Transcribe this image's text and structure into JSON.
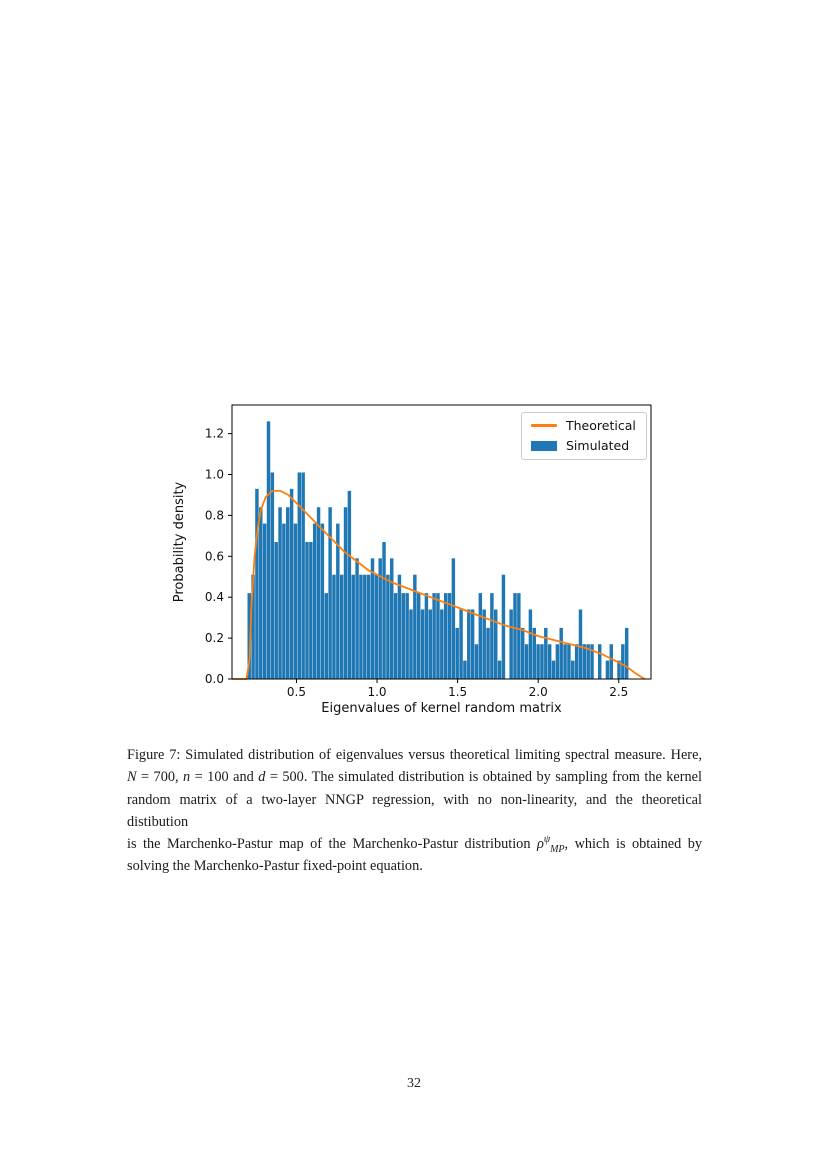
{
  "page": {
    "number": "32"
  },
  "chart_data": {
    "type": "bar",
    "subtype": "histogram-with-theoretical-curve",
    "title": "",
    "xlabel": "Eigenvalues of kernel random matrix",
    "ylabel": "Probability density",
    "xlim": [
      0.1,
      2.7
    ],
    "ylim": [
      0,
      1.34
    ],
    "xticks": [
      0.5,
      1.0,
      1.5,
      2.0,
      2.5
    ],
    "yticks": [
      0.0,
      0.2,
      0.4,
      0.6,
      0.8,
      1.0,
      1.2
    ],
    "grid": false,
    "legend_position": "upper right",
    "legend": [
      {
        "label": "Theoretical",
        "type": "line",
        "color": "#ff7f0e"
      },
      {
        "label": "Simulated",
        "type": "patch",
        "color": "#1f77b4"
      }
    ],
    "histogram": {
      "color": "#1f77b4",
      "bin_start": 0.195,
      "bin_width": 0.0239,
      "heights": [
        0.42,
        0.51,
        0.93,
        0.84,
        0.76,
        1.26,
        1.01,
        0.67,
        0.84,
        0.76,
        0.84,
        0.93,
        0.76,
        1.01,
        1.01,
        0.67,
        0.67,
        0.76,
        0.84,
        0.76,
        0.42,
        0.84,
        0.51,
        0.76,
        0.51,
        0.84,
        0.92,
        0.51,
        0.59,
        0.51,
        0.51,
        0.51,
        0.59,
        0.51,
        0.59,
        0.67,
        0.51,
        0.59,
        0.42,
        0.51,
        0.42,
        0.42,
        0.34,
        0.51,
        0.42,
        0.34,
        0.42,
        0.34,
        0.42,
        0.42,
        0.34,
        0.42,
        0.42,
        0.59,
        0.25,
        0.34,
        0.09,
        0.34,
        0.34,
        0.17,
        0.42,
        0.34,
        0.25,
        0.42,
        0.34,
        0.09,
        0.51,
        0.0,
        0.34,
        0.42,
        0.42,
        0.25,
        0.17,
        0.34,
        0.25,
        0.17,
        0.17,
        0.25,
        0.17,
        0.09,
        0.17,
        0.25,
        0.17,
        0.17,
        0.09,
        0.17,
        0.34,
        0.17,
        0.17,
        0.17,
        0.0,
        0.17,
        0.0,
        0.09,
        0.17,
        0.0,
        0.09,
        0.17,
        0.25,
        0.0
      ]
    },
    "theoretical_curve": {
      "color": "#ff7f0e",
      "points": [
        [
          0.1,
          0.0
        ],
        [
          0.19,
          0.0
        ],
        [
          0.21,
          0.1
        ],
        [
          0.22,
          0.35
        ],
        [
          0.24,
          0.6
        ],
        [
          0.26,
          0.74
        ],
        [
          0.28,
          0.83
        ],
        [
          0.31,
          0.89
        ],
        [
          0.35,
          0.92
        ],
        [
          0.4,
          0.92
        ],
        [
          0.45,
          0.9
        ],
        [
          0.5,
          0.86
        ],
        [
          0.55,
          0.82
        ],
        [
          0.6,
          0.78
        ],
        [
          0.65,
          0.74
        ],
        [
          0.7,
          0.7
        ],
        [
          0.75,
          0.66
        ],
        [
          0.8,
          0.62
        ],
        [
          0.85,
          0.59
        ],
        [
          0.9,
          0.56
        ],
        [
          0.95,
          0.53
        ],
        [
          1.0,
          0.51
        ],
        [
          1.1,
          0.47
        ],
        [
          1.2,
          0.44
        ],
        [
          1.3,
          0.41
        ],
        [
          1.4,
          0.38
        ],
        [
          1.5,
          0.35
        ],
        [
          1.6,
          0.32
        ],
        [
          1.7,
          0.29
        ],
        [
          1.8,
          0.26
        ],
        [
          1.9,
          0.24
        ],
        [
          2.0,
          0.21
        ],
        [
          2.1,
          0.19
        ],
        [
          2.2,
          0.17
        ],
        [
          2.3,
          0.15
        ],
        [
          2.4,
          0.12
        ],
        [
          2.5,
          0.08
        ],
        [
          2.55,
          0.06
        ],
        [
          2.6,
          0.03
        ],
        [
          2.64,
          0.01
        ],
        [
          2.66,
          0.0
        ]
      ]
    }
  },
  "caption": {
    "lines": [
      {
        "last": false,
        "segments": [
          {
            "t": "Figure 7: Simulated distribution of eigenvalues versus theoretical limiting spectral measure. Here,",
            "s": ""
          }
        ]
      },
      {
        "last": false,
        "segments": [
          {
            "t": "N",
            "s": "i"
          },
          {
            "t": " = 700, ",
            "s": ""
          },
          {
            "t": "n",
            "s": "i"
          },
          {
            "t": " = 100 and ",
            "s": ""
          },
          {
            "t": "d",
            "s": "i"
          },
          {
            "t": " = 500. The simulated distribution is obtained by sampling from the kernel",
            "s": ""
          }
        ]
      },
      {
        "last": false,
        "segments": [
          {
            "t": "random matrix of a two-layer NNGP regression, with no non-linearity, and the theoretical distibution",
            "s": ""
          }
        ]
      },
      {
        "last": false,
        "segments": [
          {
            "t": "is the Marchenko-Pastur map of the Marchenko-Pastur distribution ",
            "s": ""
          },
          {
            "t": "ρ",
            "s": "i"
          },
          {
            "t": "ψ",
            "s": "sup"
          },
          {
            "t": "MP",
            "s": "sub"
          },
          {
            "t": ", which is obtained by",
            "s": ""
          }
        ]
      },
      {
        "last": true,
        "segments": [
          {
            "t": "solving the Marchenko-Pastur fixed-point equation.",
            "s": ""
          }
        ]
      }
    ]
  }
}
